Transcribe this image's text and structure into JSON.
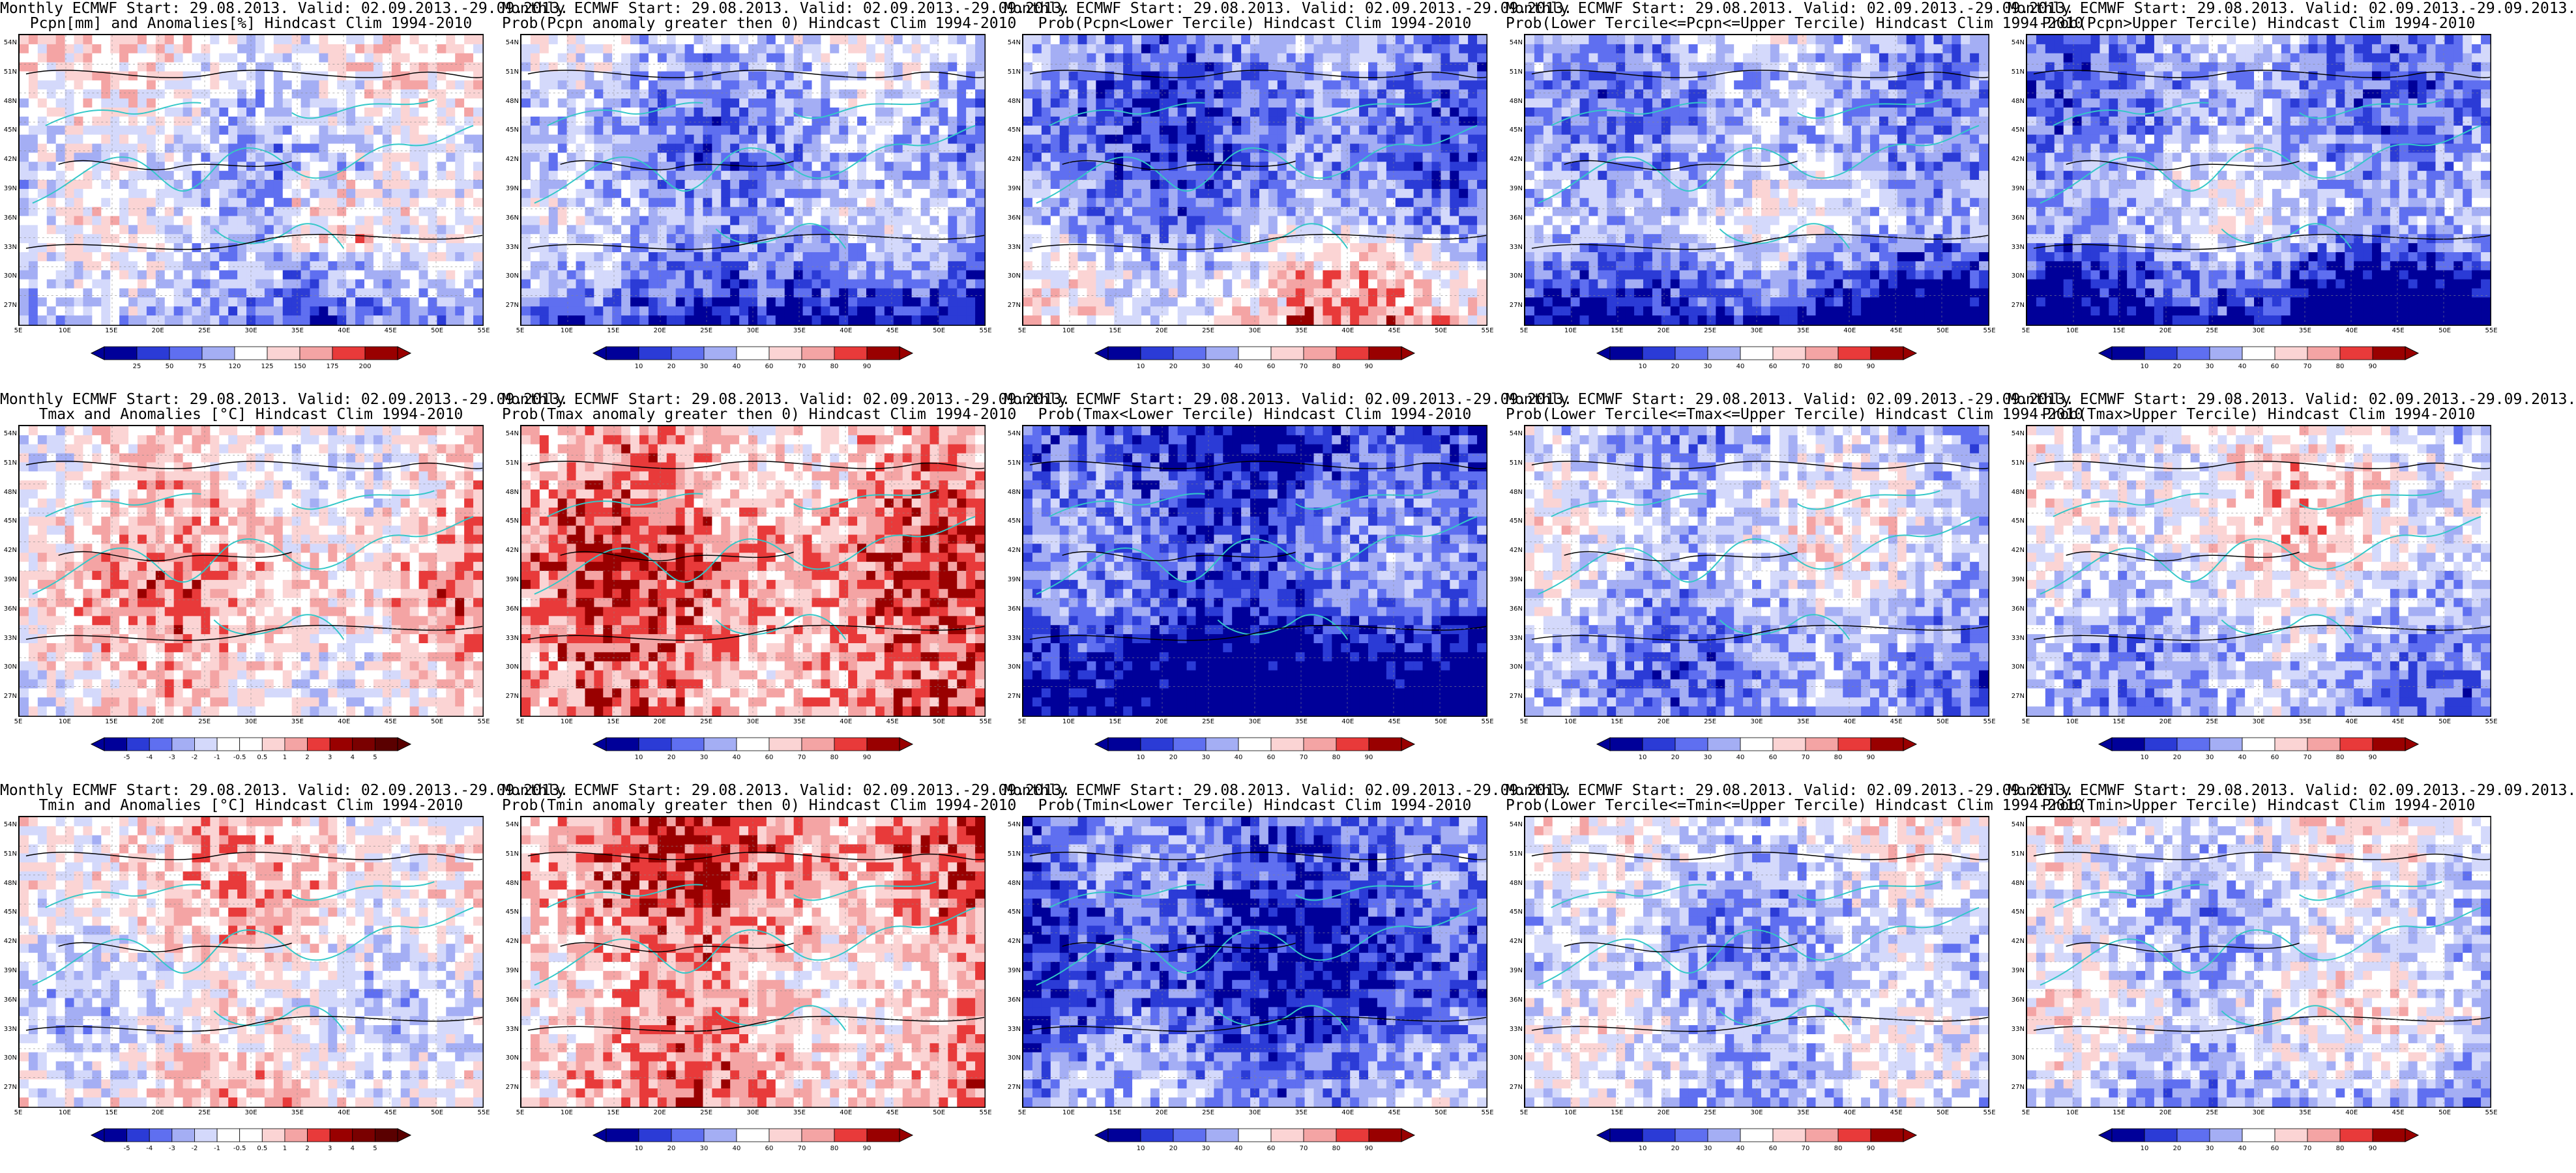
{
  "page": {
    "colors": {
      "deep_blue": "#000099",
      "blue": "#2b3bd6",
      "mid_blue": "#5f6ff0",
      "light_blue": "#a4aef4",
      "pale_blue": "#d4d9fb",
      "white": "#ffffff",
      "pale_red": "#fbd4d4",
      "light_red": "#f4a4a4",
      "red": "#e83a3a",
      "deep_red": "#990000",
      "coast": "#33c8c8",
      "contour": "#000000"
    },
    "icons": [
      "colorbar-arrow-left-icon",
      "colorbar-arrow-right-icon"
    ]
  },
  "map_axes": {
    "lat_labels": [
      "54N",
      "51N",
      "48N",
      "45N",
      "42N",
      "39N",
      "36N",
      "33N",
      "30N",
      "27N"
    ],
    "lon_labels": [
      "5E",
      "10E",
      "15E",
      "20E",
      "25E",
      "30E",
      "35E",
      "40E",
      "45E",
      "50E",
      "55E"
    ]
  },
  "colorbars": {
    "precip_anomaly": [
      "25",
      "50",
      "75",
      "120",
      "125",
      "150",
      "175",
      "200"
    ],
    "temp_anomaly": [
      "-5",
      "-4",
      "-3",
      "-2",
      "-1",
      "-0.5",
      "0.5",
      "1",
      "2",
      "3",
      "4",
      "5"
    ],
    "probability": [
      "10",
      "20",
      "30",
      "40",
      "60",
      "70",
      "80",
      "90"
    ]
  },
  "panels": [
    {
      "row": 0,
      "col": 0,
      "title1": "Monthly ECMWF Start: 29.08.2013. Valid: 02.09.2013.-29.09.2013.",
      "title2": "Pcpn[mm] and Anomalies[%] Hindcast Clim 1994-2010",
      "colorbar": "precip_anomaly"
    },
    {
      "row": 0,
      "col": 1,
      "title1": "Monthly ECMWF Start: 29.08.2013. Valid: 02.09.2013.-29.09.2013.",
      "title2": "Prob(Pcpn anomaly greater then 0) Hindcast Clim 1994-2010",
      "colorbar": "probability"
    },
    {
      "row": 0,
      "col": 2,
      "title1": "Monthly ECMWF Start: 29.08.2013. Valid: 02.09.2013.-29.09.2013.",
      "title2": "Prob(Pcpn<Lower Tercile) Hindcast Clim 1994-2010",
      "colorbar": "probability"
    },
    {
      "row": 0,
      "col": 3,
      "title1": "Monthly ECMWF Start: 29.08.2013. Valid: 02.09.2013.-29.09.2013.",
      "title2": "Prob(Lower Tercile<=Pcpn<=Upper Tercile) Hindcast Clim 1994-2010",
      "colorbar": "probability"
    },
    {
      "row": 0,
      "col": 4,
      "title1": "Monthly ECMWF Start: 29.08.2013. Valid: 02.09.2013.-29.09.2013.",
      "title2": "Prob(Pcpn>Upper Tercile) Hindcast Clim 1994-2010",
      "colorbar": "probability"
    },
    {
      "row": 1,
      "col": 0,
      "title1": "Monthly ECMWF Start: 29.08.2013. Valid: 02.09.2013.-29.09.2013.",
      "title2": "Tmax and Anomalies [°C] Hindcast Clim 1994-2010",
      "colorbar": "temp_anomaly"
    },
    {
      "row": 1,
      "col": 1,
      "title1": "Monthly ECMWF Start: 29.08.2013. Valid: 02.09.2013.-29.09.2013.",
      "title2": "Prob(Tmax anomaly greater then 0) Hindcast Clim 1994-2010",
      "colorbar": "probability"
    },
    {
      "row": 1,
      "col": 2,
      "title1": "Monthly ECMWF Start: 29.08.2013. Valid: 02.09.2013.-29.09.2013.",
      "title2": "Prob(Tmax<Lower Tercile) Hindcast Clim 1994-2010",
      "colorbar": "probability"
    },
    {
      "row": 1,
      "col": 3,
      "title1": "Monthly ECMWF Start: 29.08.2013. Valid: 02.09.2013.-29.09.2013.",
      "title2": "Prob(Lower Tercile<=Tmax<=Upper Tercile) Hindcast Clim 1994-2010",
      "colorbar": "probability"
    },
    {
      "row": 1,
      "col": 4,
      "title1": "Monthly ECMWF Start: 29.08.2013. Valid: 02.09.2013.-29.09.2013.",
      "title2": "Prob(Tmax>Upper Tercile) Hindcast Clim 1994-2010",
      "colorbar": "probability"
    },
    {
      "row": 2,
      "col": 0,
      "title1": "Monthly ECMWF Start: 29.08.2013. Valid: 02.09.2013.-29.09.2013.",
      "title2": "Tmin and Anomalies [°C] Hindcast Clim 1994-2010",
      "colorbar": "temp_anomaly"
    },
    {
      "row": 2,
      "col": 1,
      "title1": "Monthly ECMWF Start: 29.08.2013. Valid: 02.09.2013.-29.09.2013.",
      "title2": "Prob(Tmin anomaly greater then 0) Hindcast Clim 1994-2010",
      "colorbar": "probability"
    },
    {
      "row": 2,
      "col": 2,
      "title1": "Monthly ECMWF Start: 29.08.2013. Valid: 02.09.2013.-29.09.2013.",
      "title2": "Prob(Tmin<Lower Tercile) Hindcast Clim 1994-2010",
      "colorbar": "probability"
    },
    {
      "row": 2,
      "col": 3,
      "title1": "Monthly ECMWF Start: 29.08.2013. Valid: 02.09.2013.-29.09.2013.",
      "title2": "Prob(Lower Tercile<=Tmin<=Upper Tercile) Hindcast Clim 1994-2010",
      "colorbar": "probability"
    },
    {
      "row": 2,
      "col": 4,
      "title1": "Monthly ECMWF Start: 29.08.2013. Valid: 02.09.2013.-29.09.2013.",
      "title2": "Prob(Tmin>Upper Tercile) Hindcast Clim 1994-2010",
      "colorbar": "probability"
    }
  ]
}
